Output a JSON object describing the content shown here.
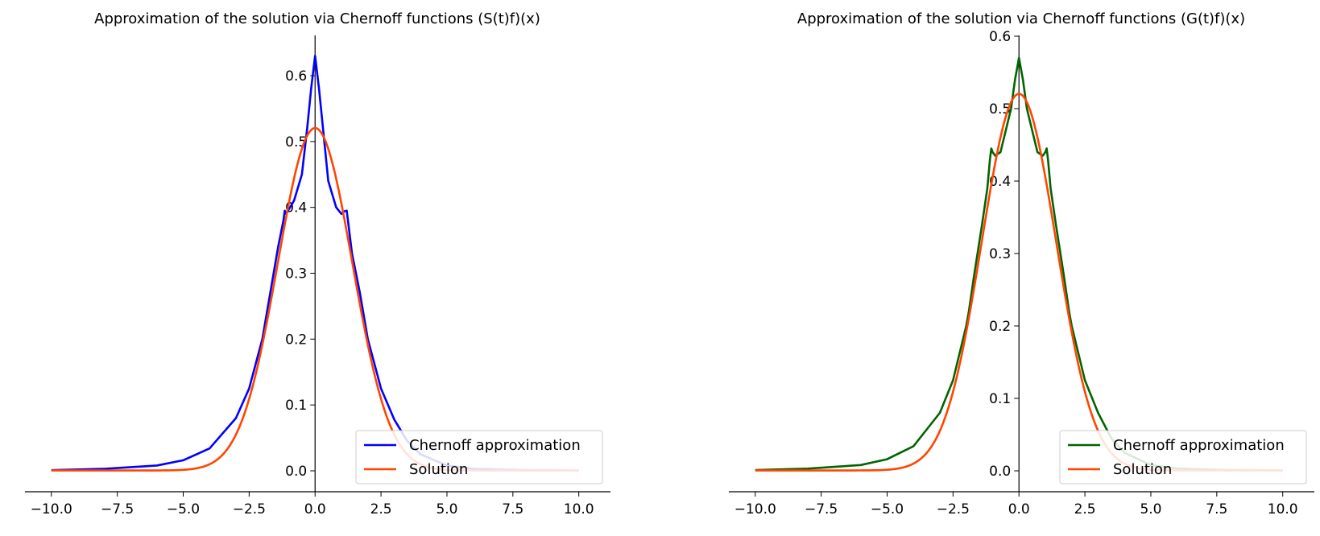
{
  "chart_data": [
    {
      "type": "line",
      "title": "Approximation of the solution via Chernoff functions (S(t)f)(x)",
      "xlim": [
        -11,
        11.2
      ],
      "ylim": [
        -0.03,
        0.665
      ],
      "xticks": [
        -10,
        -7.5,
        -5,
        -2.5,
        0,
        2.5,
        5,
        7.5,
        10
      ],
      "xtick_labels": [
        "−10.0",
        "−7.5",
        "−5.0",
        "−2.5",
        "0.0",
        "2.5",
        "5.0",
        "7.5",
        "10.0"
      ],
      "yticks": [
        0,
        0.1,
        0.2,
        0.3,
        0.4,
        0.5,
        0.6
      ],
      "ytick_labels": [
        "0.0",
        "0.1",
        "0.2",
        "0.3",
        "0.4",
        "0.5",
        "0.6"
      ],
      "spines": "centered-at-origin",
      "grid": false,
      "legend_position": "lower-right",
      "series": [
        {
          "name": "Chernoff approximation",
          "color": "#0000ff",
          "x": [
            -10,
            -8,
            -6,
            -5,
            -4,
            -3,
            -2.5,
            -2,
            -1.7,
            -1.4,
            -1.2,
            -1.15,
            -1.1,
            -0.8,
            -0.5,
            -0.3,
            -0.15,
            0,
            0.15,
            0.3,
            0.5,
            0.8,
            1.0,
            1.1,
            1.2,
            1.4,
            1.7,
            2.0,
            2.5,
            3.0,
            3.5,
            4,
            5,
            6,
            8,
            10
          ],
          "y": [
            0.001,
            0.003,
            0.008,
            0.016,
            0.034,
            0.08,
            0.125,
            0.2,
            0.27,
            0.34,
            0.38,
            0.395,
            0.39,
            0.41,
            0.45,
            0.52,
            0.58,
            0.63,
            0.58,
            0.52,
            0.44,
            0.4,
            0.39,
            0.394,
            0.395,
            0.33,
            0.27,
            0.2,
            0.125,
            0.078,
            0.045,
            0.025,
            0.008,
            0.003,
            0.001,
            0.0005
          ]
        },
        {
          "name": "Solution",
          "color": "#ff4500",
          "solution_params": {
            "amplitude": 0.52,
            "width": 1.1,
            "tail": 0.0005
          }
        }
      ]
    },
    {
      "type": "line",
      "title": "Approximation of the solution via Chernoff functions (G(t)f)(x)",
      "xlim": [
        -11,
        11.2
      ],
      "ylim": [
        -0.03,
        0.6
      ],
      "xticks": [
        -10,
        -7.5,
        -5,
        -2.5,
        0,
        2.5,
        5,
        7.5,
        10
      ],
      "xtick_labels": [
        "−10.0",
        "−7.5",
        "−5.0",
        "−2.5",
        "0.0",
        "2.5",
        "5.0",
        "7.5",
        "10.0"
      ],
      "yticks": [
        0,
        0.1,
        0.2,
        0.3,
        0.4,
        0.5,
        0.6
      ],
      "ytick_labels": [
        "0.0",
        "0.1",
        "0.2",
        "0.3",
        "0.4",
        "0.5",
        "0.6"
      ],
      "spines": "centered-at-origin",
      "grid": false,
      "legend_position": "lower-right",
      "series": [
        {
          "name": "Chernoff approximation",
          "color": "#006400",
          "x": [
            -10,
            -8,
            -6,
            -5,
            -4,
            -3,
            -2.5,
            -2.0,
            -1.9,
            -1.7,
            -1.4,
            -1.2,
            -1.1,
            -1.05,
            -1.0,
            -0.9,
            -0.7,
            -0.5,
            -0.3,
            -0.15,
            0,
            0.15,
            0.3,
            0.5,
            0.7,
            0.9,
            1.0,
            1.05,
            1.1,
            1.2,
            1.4,
            1.7,
            1.9,
            2.0,
            2.5,
            3.0,
            3.5,
            4,
            5,
            6,
            8,
            10
          ],
          "y": [
            0.001,
            0.003,
            0.008,
            0.016,
            0.034,
            0.08,
            0.125,
            0.2,
            0.22,
            0.27,
            0.34,
            0.39,
            0.43,
            0.445,
            0.44,
            0.435,
            0.44,
            0.47,
            0.5,
            0.54,
            0.57,
            0.54,
            0.5,
            0.47,
            0.44,
            0.435,
            0.44,
            0.445,
            0.43,
            0.39,
            0.34,
            0.27,
            0.22,
            0.2,
            0.125,
            0.08,
            0.045,
            0.025,
            0.008,
            0.003,
            0.001,
            0.0005
          ]
        },
        {
          "name": "Solution",
          "color": "#ff4500",
          "solution_params": {
            "amplitude": 0.52,
            "width": 1.1,
            "tail": 0.0005
          }
        }
      ]
    }
  ]
}
